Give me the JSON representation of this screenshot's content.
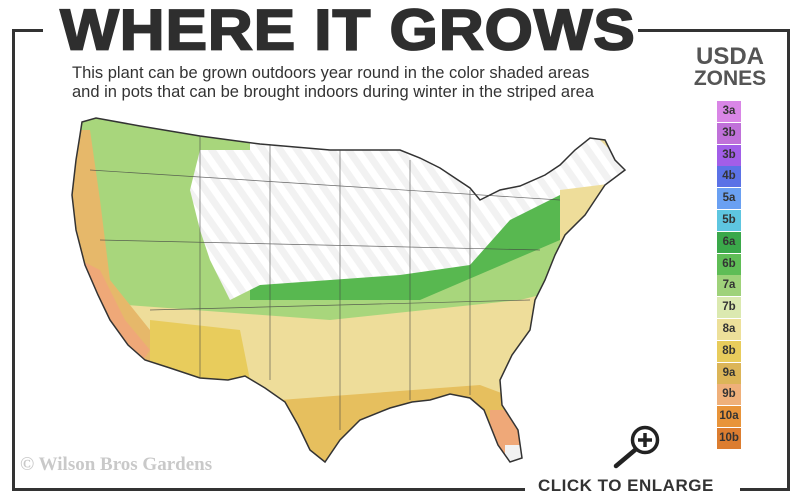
{
  "title": "WHERE IT GROWS",
  "subtitle_line1": "This plant can be grown outdoors year round in the color shaded areas",
  "subtitle_line2": "and in pots that can be brought indoors during winter in the striped area",
  "legend": {
    "title_line1": "USDA",
    "title_line2": "ZONES",
    "zones": [
      {
        "label": "3a",
        "color": "#d986e6"
      },
      {
        "label": "3b",
        "color": "#c071d9"
      },
      {
        "label": "3b",
        "color": "#a25ee8"
      },
      {
        "label": "4b",
        "color": "#5b72e6"
      },
      {
        "label": "5a",
        "color": "#6aa0f2"
      },
      {
        "label": "5b",
        "color": "#5ec6e0"
      },
      {
        "label": "6a",
        "color": "#3aa84a"
      },
      {
        "label": "6b",
        "color": "#5fbd56"
      },
      {
        "label": "7a",
        "color": "#9fd27a"
      },
      {
        "label": "7b",
        "color": "#dbe9b0"
      },
      {
        "label": "8a",
        "color": "#ede09a"
      },
      {
        "label": "8b",
        "color": "#e8cc5c"
      },
      {
        "label": "9a",
        "color": "#dcb558"
      },
      {
        "label": "9b",
        "color": "#efb07a"
      },
      {
        "label": "10a",
        "color": "#e8943a"
      },
      {
        "label": "10b",
        "color": "#dc7d30"
      }
    ]
  },
  "copyright": "© Wilson Bros Gardens",
  "enlarge_label": "CLICK TO ENLARGE",
  "icons": {
    "zoom": "magnifier-plus-icon"
  }
}
